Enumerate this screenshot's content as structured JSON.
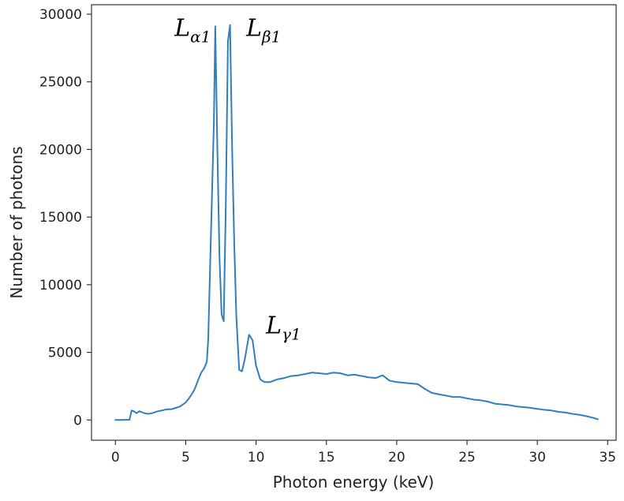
{
  "chart_data": {
    "type": "line",
    "title": "",
    "xlabel": "Photon energy (keV)",
    "ylabel": "Number of photons",
    "xlim": [
      -1.7,
      35.6
    ],
    "ylim": [
      -1500,
      30700
    ],
    "xticks": [
      0,
      5,
      10,
      15,
      20,
      25,
      30,
      35
    ],
    "yticks": [
      0,
      5000,
      10000,
      15000,
      20000,
      25000,
      30000
    ],
    "grid": false,
    "line_color": "#2f7fbf",
    "annotations": [
      {
        "name": "l-alpha1",
        "main": "L",
        "sub": "α1",
        "x": 4.2,
        "y": 28400
      },
      {
        "name": "l-beta1",
        "main": "L",
        "sub": "β1",
        "x": 9.3,
        "y": 28400
      },
      {
        "name": "l-gamma1",
        "main": "L",
        "sub": "γ1",
        "x": 10.7,
        "y": 6400
      }
    ],
    "series": [
      {
        "name": "spectrum",
        "x": [
          0,
          0.5,
          1.0,
          1.15,
          1.3,
          1.5,
          1.7,
          2.0,
          2.3,
          2.6,
          3.0,
          3.3,
          3.6,
          4.0,
          4.3,
          4.6,
          5.0,
          5.3,
          5.6,
          5.9,
          6.1,
          6.3,
          6.5,
          6.6,
          6.7,
          6.85,
          7.0,
          7.1,
          7.25,
          7.4,
          7.55,
          7.7,
          7.85,
          8.0,
          8.15,
          8.3,
          8.45,
          8.6,
          8.8,
          9.0,
          9.2,
          9.5,
          9.75,
          10.0,
          10.3,
          10.6,
          11.0,
          11.5,
          12.0,
          12.5,
          13.0,
          13.5,
          14.0,
          14.5,
          15.0,
          15.5,
          16.0,
          16.5,
          17.0,
          17.5,
          18.0,
          18.5,
          19.0,
          19.5,
          20.0,
          20.5,
          21.0,
          21.5,
          22.0,
          22.5,
          23.0,
          23.5,
          24.0,
          24.5,
          25.0,
          25.5,
          26.0,
          26.5,
          27.0,
          27.5,
          28.0,
          28.5,
          29.0,
          29.5,
          30.0,
          30.5,
          31.0,
          31.5,
          32.0,
          32.5,
          33.0,
          33.5,
          34.0,
          34.3
        ],
        "values": [
          0,
          0,
          20,
          700,
          650,
          500,
          650,
          520,
          450,
          500,
          640,
          700,
          780,
          800,
          900,
          1000,
          1300,
          1700,
          2200,
          3000,
          3500,
          3800,
          4300,
          6000,
          10000,
          16000,
          22000,
          29100,
          20000,
          12000,
          7800,
          7300,
          16000,
          28000,
          29200,
          20000,
          13000,
          7600,
          3700,
          3600,
          4500,
          6300,
          5900,
          4000,
          3000,
          2800,
          2800,
          3000,
          3100,
          3250,
          3300,
          3400,
          3500,
          3450,
          3400,
          3500,
          3450,
          3300,
          3350,
          3250,
          3150,
          3100,
          3300,
          2900,
          2800,
          2750,
          2700,
          2650,
          2300,
          2000,
          1900,
          1800,
          1700,
          1700,
          1600,
          1500,
          1450,
          1350,
          1200,
          1150,
          1100,
          1000,
          950,
          900,
          820,
          750,
          700,
          600,
          550,
          450,
          380,
          280,
          150,
          50
        ]
      }
    ]
  }
}
